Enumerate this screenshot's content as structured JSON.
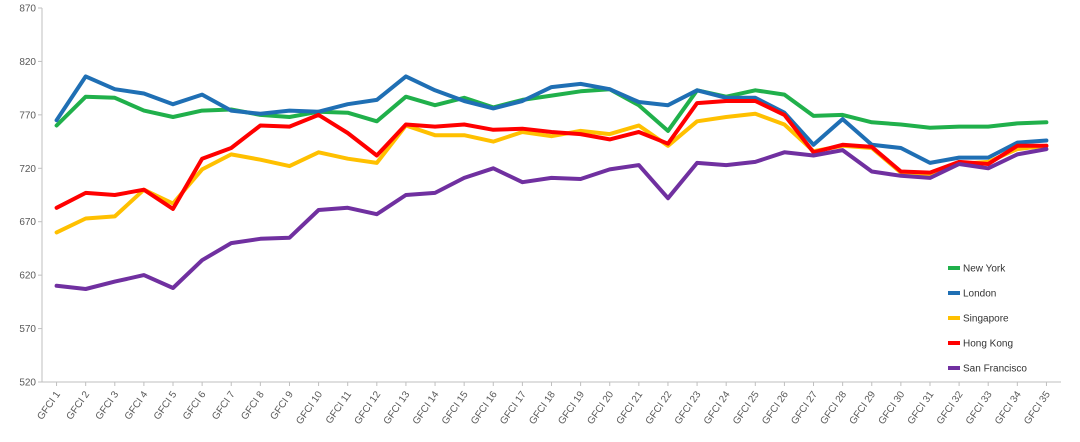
{
  "chart_data": {
    "type": "line",
    "title": "",
    "xlabel": "",
    "ylabel": "",
    "ylim": [
      520,
      870
    ],
    "yticks": [
      520,
      570,
      620,
      670,
      720,
      770,
      820,
      870
    ],
    "grid": false,
    "legend_position": "bottom-right",
    "categories": [
      "GFCI 1",
      "GFCI 2",
      "GFCI 3",
      "GFCI 4",
      "GFCI 5",
      "GFCI 6",
      "GFCI 7",
      "GFCI 8",
      "GFCI 9",
      "GFCI 10",
      "GFCI 11",
      "GFCI 12",
      "GFCI 13",
      "GFCI 14",
      "GFCI 15",
      "GFCI 16",
      "GFCI 17",
      "GFCI 18",
      "GFCI 19",
      "GFCI 20",
      "GFCI 21",
      "GFCI 22",
      "GFCI 23",
      "GFCI 24",
      "GFCI 25",
      "GFCI 26",
      "GFCI 27",
      "GFCI 28",
      "GFCI 29",
      "GFCI 30",
      "GFCI 31",
      "GFCI 32",
      "GFCI 33",
      "GFCI 34",
      "GFCI 35"
    ],
    "series": [
      {
        "name": "New York",
        "color": "#20b04b",
        "values": [
          760,
          787,
          786,
          774,
          768,
          774,
          775,
          770,
          768,
          773,
          772,
          764,
          787,
          779,
          786,
          777,
          784,
          788,
          792,
          794,
          779,
          755,
          793,
          787,
          793,
          789,
          769,
          770,
          763,
          761,
          758,
          759,
          759,
          762,
          763
        ]
      },
      {
        "name": "London",
        "color": "#1f6fb4",
        "values": [
          765,
          806,
          794,
          790,
          780,
          789,
          774,
          771,
          774,
          773,
          780,
          784,
          806,
          793,
          783,
          776,
          783,
          796,
          799,
          794,
          782,
          779,
          793,
          786,
          786,
          772,
          742,
          766,
          742,
          739,
          725,
          730,
          730,
          744,
          746
        ]
      },
      {
        "name": "Singapore",
        "color": "#ffc000",
        "values": [
          660,
          673,
          675,
          700,
          687,
          719,
          733,
          728,
          722,
          735,
          729,
          725,
          760,
          751,
          751,
          745,
          754,
          750,
          755,
          752,
          760,
          741,
          764,
          768,
          771,
          761,
          736,
          741,
          739,
          716,
          713,
          724,
          726,
          738,
          741
        ]
      },
      {
        "name": "Hong Kong",
        "color": "#ff0000",
        "values": [
          683,
          697,
          695,
          700,
          682,
          729,
          739,
          760,
          759,
          770,
          753,
          732,
          761,
          759,
          761,
          756,
          757,
          754,
          752,
          747,
          754,
          743,
          781,
          783,
          783,
          770,
          735,
          742,
          740,
          717,
          716,
          726,
          724,
          741,
          741
        ]
      },
      {
        "name": "San Francisco",
        "color": "#7030a0",
        "values": [
          610,
          607,
          614,
          620,
          608,
          634,
          650,
          654,
          655,
          681,
          683,
          677,
          695,
          697,
          711,
          720,
          707,
          711,
          710,
          719,
          723,
          692,
          725,
          723,
          726,
          735,
          732,
          737,
          717,
          713,
          711,
          724,
          720,
          733,
          738
        ]
      }
    ]
  }
}
